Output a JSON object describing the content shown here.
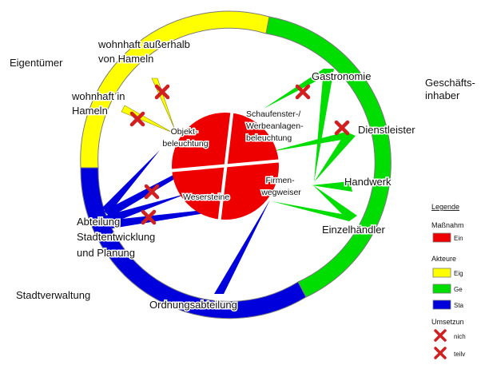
{
  "colors": {
    "ring_owner": "#ffff00",
    "ring_business": "#00dd00",
    "ring_admin": "#0000dd",
    "measures": "#ee0000",
    "outline": "#7a7a7a",
    "cross": "#d21f1f"
  },
  "outer_labels": {
    "owners": "Eigentümer",
    "business": [
      "Geschäfts-",
      "inhaber"
    ],
    "admin": "Stadtverwaltung"
  },
  "actors": {
    "outside": [
      "wohnhaft außerhalb",
      "von Hameln"
    ],
    "inside": [
      "wohnhaft in",
      "Hameln"
    ],
    "gastro": "Gastronomie",
    "service": "Dienstleister",
    "craft": "Handwerk",
    "retail": "Einzelhändler",
    "planning": [
      "Abteilung",
      "Stadtentwicklung",
      "und Planung"
    ],
    "order": "Ordnungsabteilung"
  },
  "measures": {
    "object": [
      "Objekt-",
      "beleuchtung"
    ],
    "shop": [
      "Schaufenster-/",
      "Werbeanlagen-",
      "beleuchtung"
    ],
    "stones": "Wesersteine",
    "signs": [
      "Firmen-",
      "wegweiser"
    ]
  },
  "legend": {
    "title": "Legende",
    "measures_head": "Maßnahm",
    "measures_item": "Ein",
    "actors_head": "Akteure",
    "actor_items": [
      "Eig",
      "Ge",
      "Sta"
    ],
    "impl_head": "Umsetzun",
    "impl_items": [
      "nich",
      "teilv"
    ]
  }
}
